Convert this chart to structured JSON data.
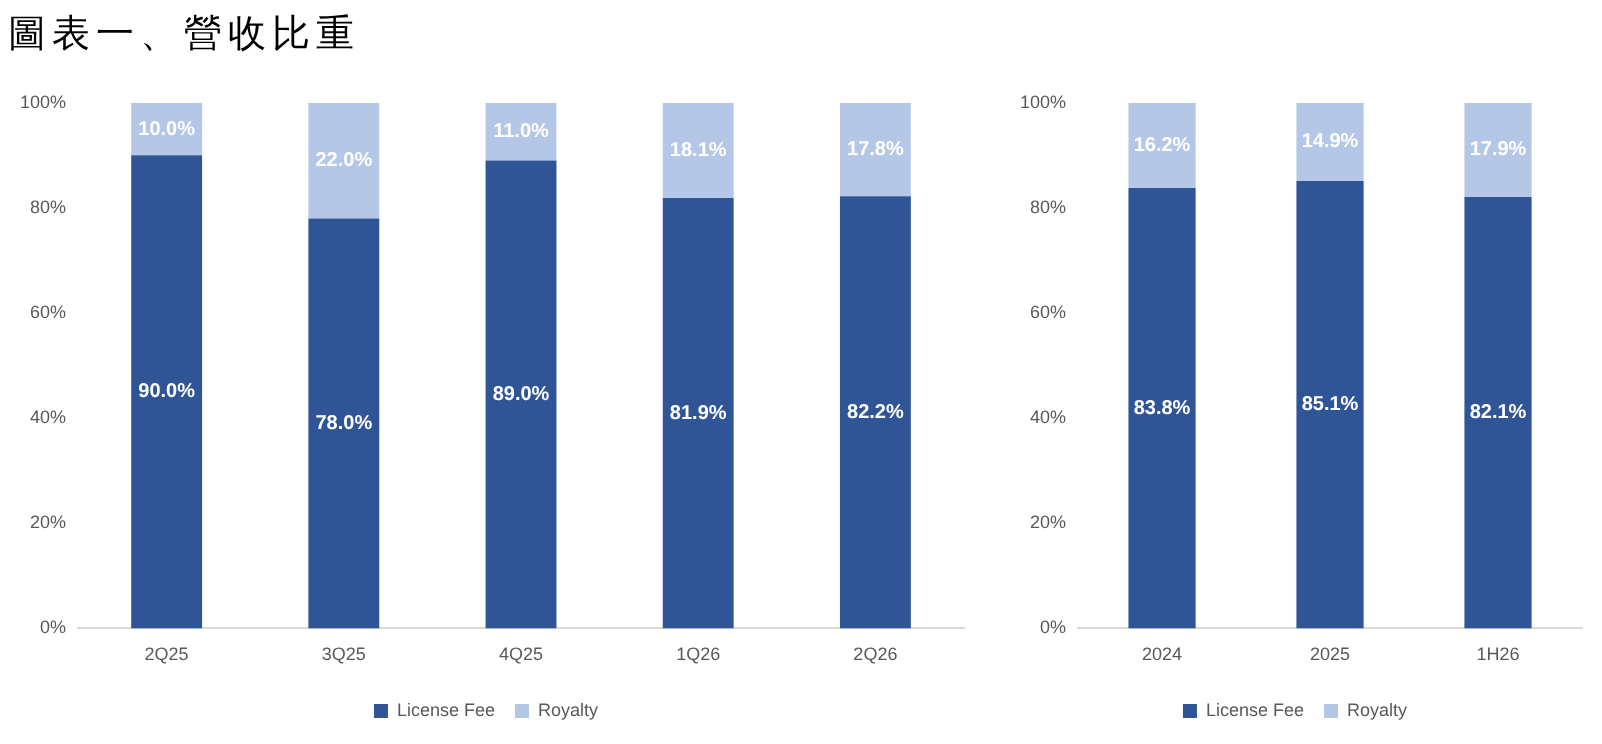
{
  "chart_data": [
    {
      "type": "bar",
      "title": "圖表一、營收比重",
      "stacked": true,
      "legend": "bottom",
      "categories": [
        "2Q25",
        "3Q25",
        "4Q25",
        "1Q26",
        "2Q26"
      ],
      "ylim": [
        0,
        100
      ],
      "yticks": [
        {
          "value": 0,
          "label": "0%"
        },
        {
          "value": 20,
          "label": "20%"
        },
        {
          "value": 40,
          "label": "40%"
        },
        {
          "value": 60,
          "label": "60%"
        },
        {
          "value": 80,
          "label": "80%"
        },
        {
          "value": 100,
          "label": "100%"
        }
      ],
      "series": [
        {
          "name": "License Fee",
          "color": "#2f5597",
          "values": [
            90.0,
            78.0,
            89.0,
            81.9,
            82.2
          ],
          "value_labels": [
            "90.0%",
            "78.0%",
            "89.0%",
            "81.9%",
            "82.2%"
          ]
        },
        {
          "name": "Royalty",
          "color": "#b4c7e7",
          "values": [
            10.0,
            22.0,
            11.0,
            18.1,
            17.8
          ],
          "value_labels": [
            "10.0%",
            "22.0%",
            "11.0%",
            "18.1%",
            "17.8%"
          ]
        }
      ]
    },
    {
      "type": "bar",
      "stacked": true,
      "legend": "bottom",
      "categories": [
        "2024",
        "2025",
        "1H26"
      ],
      "ylim": [
        0,
        100
      ],
      "yticks": [
        {
          "value": 0,
          "label": "0%"
        },
        {
          "value": 20,
          "label": "20%"
        },
        {
          "value": 40,
          "label": "40%"
        },
        {
          "value": 60,
          "label": "60%"
        },
        {
          "value": 80,
          "label": "80%"
        },
        {
          "value": 100,
          "label": "100%"
        }
      ],
      "series": [
        {
          "name": "License Fee",
          "color": "#2f5597",
          "values": [
            83.8,
            85.1,
            82.1
          ],
          "value_labels": [
            "83.8%",
            "85.1%",
            "82.1%"
          ]
        },
        {
          "name": "Royalty",
          "color": "#b4c7e7",
          "values": [
            16.2,
            14.9,
            17.9
          ],
          "value_labels": [
            "16.2%",
            "14.9%",
            "17.9%"
          ]
        }
      ]
    }
  ]
}
